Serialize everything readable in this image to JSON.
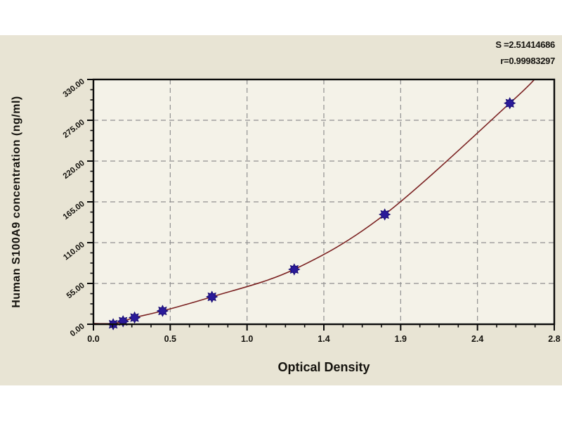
{
  "panel": {
    "background": "#e8e4d4",
    "plot_background": "#f4f2e8"
  },
  "annotation": {
    "s_text": "S =2.51414686",
    "r_text": "r=0.99983297"
  },
  "chart_data": {
    "type": "scatter",
    "title": "",
    "xlabel": "Optical Density",
    "ylabel": "Human S100A9 concentration (ng/ml)",
    "xlim": [
      0,
      2.8
    ],
    "ylim": [
      0,
      330
    ],
    "x_tick_labels": [
      "0.0",
      "0.5",
      "1.0",
      "1.4",
      "1.9",
      "2.4",
      "2.8"
    ],
    "y_tick_labels": [
      "0.00",
      "55.00",
      "110.00",
      "165.00",
      "220.00",
      "275.00",
      "330.00"
    ],
    "x_major_divisions": 6,
    "y_major_divisions": 6,
    "minor_ticks_per_major": 4,
    "grid": true,
    "legend_position": "none",
    "points": {
      "x": [
        0.12,
        0.18,
        0.25,
        0.42,
        0.72,
        1.22,
        1.77,
        2.53
      ],
      "y": [
        0,
        4,
        9,
        18,
        37,
        74,
        148,
        298
      ]
    },
    "fit": {
      "S": "2.51414686",
      "r": "0.99983297",
      "curve_points": [
        [
          0.0,
          1
        ],
        [
          0.12,
          1
        ],
        [
          0.18,
          4
        ],
        [
          0.25,
          9
        ],
        [
          0.42,
          18
        ],
        [
          0.72,
          37
        ],
        [
          1.22,
          74
        ],
        [
          1.77,
          148
        ],
        [
          2.53,
          298
        ],
        [
          2.7,
          335
        ]
      ]
    },
    "colors": {
      "curve": "#7b2222",
      "marker": "#2a1a99",
      "marker_edge": "#190d73",
      "grid": "#909090",
      "frame": "#0a0a0a",
      "tick": "#0a0a0a"
    }
  }
}
